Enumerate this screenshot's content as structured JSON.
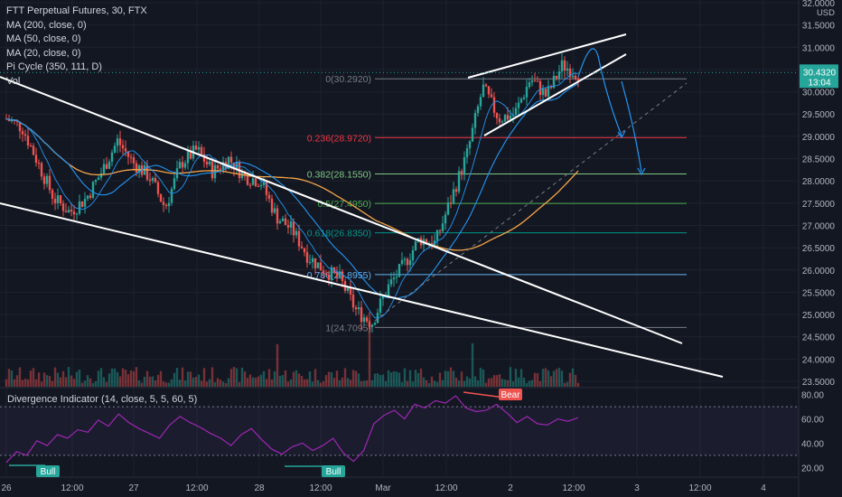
{
  "header": {
    "title": "FTT Perpetual Futures, 30, FTX",
    "indicators": [
      "MA (200, close, 0)",
      "MA (50, close, 0)",
      "MA (20, close, 0)",
      "Pi Cycle (350, 111, D)",
      "Vol"
    ]
  },
  "oscillator": {
    "label": "Divergence Indicator (14, close, 5, 5, 60, 5)",
    "axis_ticks": [
      "80.00",
      "60.00",
      "40.00",
      "20.00"
    ],
    "tags": {
      "bull1": "Bull",
      "bull2": "Bull",
      "bear": "Bear"
    }
  },
  "price_panel": {
    "currency": "USD",
    "last_price": "30.4320",
    "countdown": "13:04",
    "axis_ticks": [
      "32.0000",
      "31.5000",
      "31.0000",
      "30.5000",
      "30.0000",
      "29.5000",
      "29.0000",
      "28.5000",
      "28.0000",
      "27.5000",
      "27.0000",
      "26.5000",
      "26.0000",
      "25.5000",
      "25.0000",
      "24.5000",
      "24.0000",
      "23.5000"
    ]
  },
  "colors": {
    "background": "#131722",
    "up": "#26a69a",
    "down": "#ef5350",
    "ma200": "#f6a548",
    "ma50": "#2196f3",
    "fib_0_236": "#f23645",
    "fib_0_382": "#81c784",
    "fib_0_5": "#4caf50",
    "fib_0_618": "#009688",
    "fib_0_786": "#64b5f6",
    "oscillator": "#9c27b0",
    "price_label": "#26a69a"
  },
  "chart_data": {
    "type": "candlestick",
    "symbol": "FTT Perpetual Futures",
    "timeframe": "30",
    "exchange": "FTX",
    "x_tick_labels": [
      "26",
      "12:00",
      "27",
      "12:00",
      "28",
      "12:00",
      "Mar",
      "12:00",
      "2",
      "12:00",
      "3",
      "12:00",
      "4"
    ],
    "y_range": [
      23.5,
      32.0
    ],
    "fib_levels": [
      {
        "ratio": "0",
        "price": "30.2920",
        "label": "0(30.2920)"
      },
      {
        "ratio": "0.236",
        "price": "28.9720",
        "label": "0.236(28.9720)"
      },
      {
        "ratio": "0.382",
        "price": "28.1550",
        "label": "0.382(28.1550)"
      },
      {
        "ratio": "0.5",
        "price": "27.4950",
        "label": "0.5(27.4950)"
      },
      {
        "ratio": "0.618",
        "price": "26.8350",
        "label": "0.618(26.8350)"
      },
      {
        "ratio": "0.786",
        "price": "25.8955",
        "label": "0.786(25.8955)"
      },
      {
        "ratio": "1",
        "price": "24.7095",
        "label": "1(24.7095)"
      }
    ],
    "price_path": [
      [
        "26 00:00",
        29.4
      ],
      [
        "26 03:00",
        29.2
      ],
      [
        "26 06:00",
        28.4
      ],
      [
        "26 09:00",
        27.6
      ],
      [
        "26 12:00",
        27.3
      ],
      [
        "26 15:00",
        27.6
      ],
      [
        "26 18:00",
        28.2
      ],
      [
        "26 21:00",
        28.9
      ],
      [
        "27 00:00",
        28.4
      ],
      [
        "27 03:00",
        28.1
      ],
      [
        "27 06:00",
        27.4
      ],
      [
        "27 09:00",
        28.4
      ],
      [
        "27 12:00",
        28.7
      ],
      [
        "27 15:00",
        28.2
      ],
      [
        "27 18:00",
        28.5
      ],
      [
        "27 21:00",
        28.1
      ],
      [
        "28 00:00",
        28.0
      ],
      [
        "28 03:00",
        27.2
      ],
      [
        "28 06:00",
        26.9
      ],
      [
        "28 09:00",
        26.3
      ],
      [
        "28 12:00",
        26.0
      ],
      [
        "28 15:00",
        25.8
      ],
      [
        "28 18:00",
        25.1
      ],
      [
        "28 21:00",
        24.8
      ],
      [
        "Mar 00:00",
        25.6
      ],
      [
        "Mar 03:00",
        26.1
      ],
      [
        "Mar 06:00",
        26.7
      ],
      [
        "Mar 09:00",
        26.6
      ],
      [
        "Mar 12:00",
        27.6
      ],
      [
        "Mar 15:00",
        28.6
      ],
      [
        "Mar 18:00",
        30.1
      ],
      [
        "Mar 21:00",
        29.4
      ],
      [
        "2 00:00",
        29.5
      ],
      [
        "2 03:00",
        30.3
      ],
      [
        "2 06:00",
        29.9
      ],
      [
        "2 09:00",
        30.6
      ],
      [
        "2 12:00",
        30.4
      ]
    ],
    "last_price": 30.432,
    "moving_averages": [
      {
        "name": "MA (200, close, 0)",
        "color": "#f6a548"
      },
      {
        "name": "MA (50, close, 0)",
        "color": "#2196f3"
      },
      {
        "name": "MA (20, close, 0)",
        "color": "#2196f3"
      }
    ],
    "oscillator": {
      "name": "Divergence Indicator (14, close, 5, 5, 60, 5)",
      "y_range": [
        15,
        82
      ],
      "overbought": 70,
      "oversold": 30,
      "values": [
        24,
        33,
        30,
        42,
        38,
        47,
        44,
        51,
        49,
        59,
        54,
        64,
        57,
        52,
        48,
        44,
        55,
        62,
        57,
        53,
        48,
        44,
        38,
        47,
        52,
        43,
        35,
        31,
        37,
        40,
        34,
        38,
        44,
        32,
        25,
        34,
        56,
        63,
        67,
        60,
        72,
        69,
        75,
        73,
        79,
        69,
        66,
        67,
        72,
        65,
        57,
        62,
        56,
        55,
        60,
        58,
        61
      ]
    },
    "annotations": [
      "Bull",
      "Bull",
      "Bear"
    ]
  }
}
